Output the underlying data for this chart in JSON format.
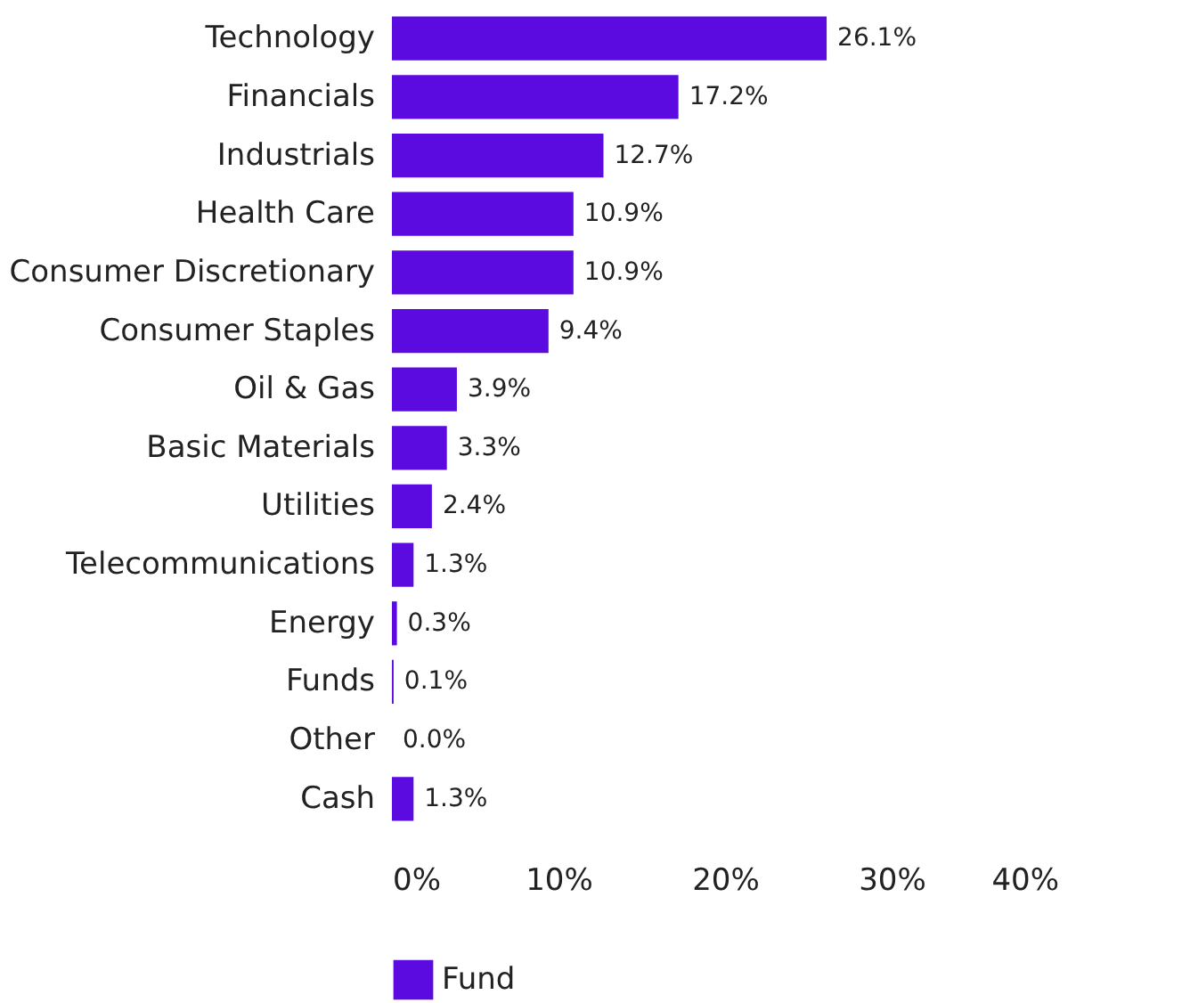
{
  "chart_data": {
    "type": "bar",
    "orientation": "horizontal",
    "categories": [
      "Technology",
      "Financials",
      "Industrials",
      "Health Care",
      "Consumer Discretionary",
      "Consumer Staples",
      "Oil & Gas",
      "Basic Materials",
      "Utilities",
      "Telecommunications",
      "Energy",
      "Funds",
      "Other",
      "Cash"
    ],
    "series": [
      {
        "name": "Fund",
        "color": "#5b0ae0",
        "values": [
          26.1,
          17.2,
          12.7,
          10.9,
          10.9,
          9.4,
          3.9,
          3.3,
          2.4,
          1.3,
          0.3,
          0.1,
          0.0,
          1.3
        ],
        "value_labels": [
          "26.1%",
          "17.2%",
          "12.7%",
          "10.9%",
          "10.9%",
          "9.4%",
          "3.9%",
          "3.3%",
          "2.4%",
          "1.3%",
          "0.3%",
          "0.1%",
          "0.0%",
          "1.3%"
        ]
      }
    ],
    "xlim": [
      0,
      40
    ],
    "xticks": [
      {
        "value": 0,
        "label": "0%"
      },
      {
        "value": 10,
        "label": "10%"
      },
      {
        "value": 20,
        "label": "20%"
      },
      {
        "value": 30,
        "label": "30%"
      },
      {
        "value": 40,
        "label": "40%"
      }
    ],
    "grid": false,
    "legend": "bottom"
  }
}
